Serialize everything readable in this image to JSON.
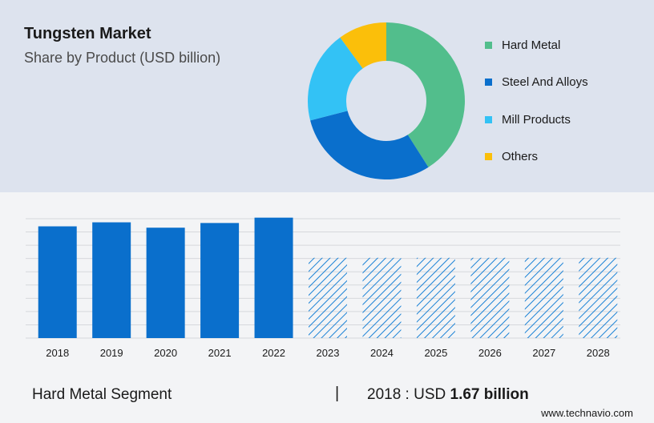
{
  "title": "Tungsten Market",
  "subtitle": "Share by Product (USD billion)",
  "footer": {
    "segment_label": "Hard Metal Segment",
    "separator": "|",
    "value_prefix": "2018 : USD ",
    "value_amount": "1.67 billion"
  },
  "website": "www.technavio.com",
  "colors": {
    "hard_metal": "#52be8c",
    "steel_and_alloys": "#0a6fcc",
    "mill_products": "#33c2f5",
    "others": "#fbbf0a",
    "bar": "#0a6fcc",
    "forecast_hatch": "#1a82d6",
    "gridline": "#d6d8dc"
  },
  "chart_data": [
    {
      "type": "pie",
      "variant": "donut",
      "title": "Share by Product (USD billion)",
      "categories": [
        "Hard Metal",
        "Steel And Alloys",
        "Mill Products",
        "Others"
      ],
      "values": [
        41,
        30,
        19,
        10
      ],
      "colors": [
        "#52be8c",
        "#0a6fcc",
        "#33c2f5",
        "#fbbf0a"
      ],
      "legend_position": "right"
    },
    {
      "type": "bar",
      "title": "Hard Metal Segment",
      "categories": [
        "2018",
        "2019",
        "2020",
        "2021",
        "2022",
        "2023",
        "2024",
        "2025",
        "2026",
        "2027",
        "2028"
      ],
      "values": [
        1.67,
        1.73,
        1.65,
        1.72,
        1.8,
        null,
        null,
        null,
        null,
        null,
        null
      ],
      "forecast_years": [
        "2023",
        "2024",
        "2025",
        "2026",
        "2027",
        "2028"
      ],
      "forecast_placeholder_level": 1.2,
      "ylim": [
        0,
        1.82
      ],
      "grid": true,
      "xlabel": "",
      "ylabel": ""
    }
  ]
}
